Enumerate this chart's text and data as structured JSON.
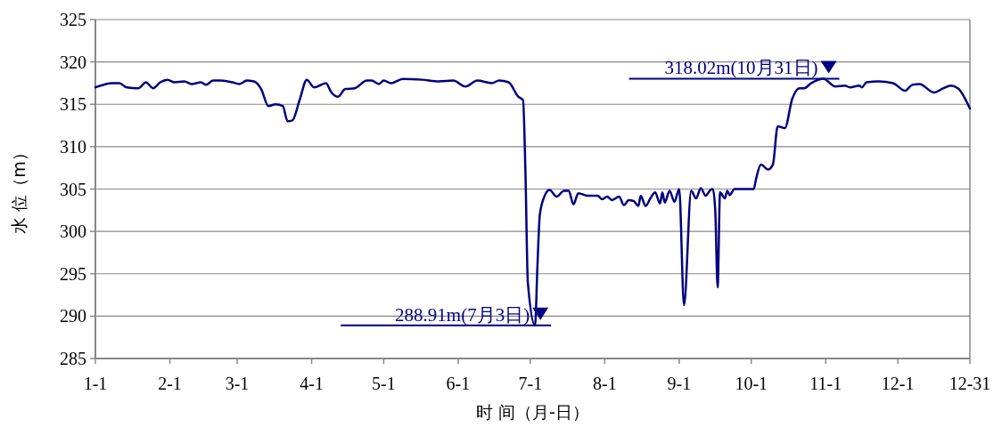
{
  "chart_data": {
    "type": "line",
    "xlabel": "时 间（月-日）",
    "ylabel": "水 位（m）",
    "xlim": [
      "--01-01",
      "--12-31"
    ],
    "ylim": [
      285,
      325
    ],
    "xticks": [
      {
        "value": "--01-01",
        "label": "1-1"
      },
      {
        "value": "--02-01",
        "label": "2-1"
      },
      {
        "value": "--03-01",
        "label": "3-1"
      },
      {
        "value": "--04-01",
        "label": "4-1"
      },
      {
        "value": "--05-01",
        "label": "5-1"
      },
      {
        "value": "--06-01",
        "label": "6-1"
      },
      {
        "value": "--07-01",
        "label": "7-1"
      },
      {
        "value": "--08-01",
        "label": "8-1"
      },
      {
        "value": "--09-01",
        "label": "9-1"
      },
      {
        "value": "--10-01",
        "label": "10-1"
      },
      {
        "value": "--11-01",
        "label": "11-1"
      },
      {
        "value": "--12-01",
        "label": "12-1"
      },
      {
        "value": "--12-31",
        "label": "12-31"
      }
    ],
    "yticks": [
      285,
      290,
      295,
      300,
      305,
      310,
      315,
      320,
      325
    ],
    "grid": "y",
    "marker": "none",
    "line_style": "solid",
    "series": [
      {
        "color": "#000080",
        "x": [
          "--01-01",
          "--01-08",
          "--01-11",
          "--01-14",
          "--01-19",
          "--01-22",
          "--01-25",
          "--01-28",
          "--01-31",
          "--02-03",
          "--02-07",
          "--02-10",
          "--02-14",
          "--02-16",
          "--02-19",
          "--02-22",
          "--02-27",
          "--03-02",
          "--03-05",
          "--03-08",
          "--03-11",
          "--03-14",
          "--03-17",
          "--03-20",
          "--03-22",
          "--03-24",
          "--03-27",
          "--03-30",
          "--04-02",
          "--04-07",
          "--04-09",
          "--04-12",
          "--04-15",
          "--04-19",
          "--04-24",
          "--04-26",
          "--04-29",
          "--05-01",
          "--05-04",
          "--05-09",
          "--05-17",
          "--05-24",
          "--05-30",
          "--06-04",
          "--06-09",
          "--06-15",
          "--06-18",
          "--06-22",
          "--06-26",
          "--06-28",
          "--06-29",
          "--06-30",
          "--07-03",
          "--07-04",
          "--07-05",
          "--07-07",
          "--07-09",
          "--07-12",
          "--07-15",
          "--07-17",
          "--07-19",
          "--07-21",
          "--07-25",
          "--07-29",
          "--07-31",
          "--08-02",
          "--08-04",
          "--08-07",
          "--08-09",
          "--08-11",
          "--08-13",
          "--08-15",
          "--08-16",
          "--08-18",
          "--08-20",
          "--08-22",
          "--08-24",
          "--08-25",
          "--08-26",
          "--08-28",
          "--08-30",
          "--09-01",
          "--09-03",
          "--09-06",
          "--09-08",
          "--09-10",
          "--09-12",
          "--09-14",
          "--09-15",
          "--09-16",
          "--09-17",
          "--09-18",
          "--09-20",
          "--09-21",
          "--09-22",
          "--09-24",
          "--10-02",
          "--10-03",
          "--10-05",
          "--10-08",
          "--10-10",
          "--10-12",
          "--10-15",
          "--10-18",
          "--10-21",
          "--10-23",
          "--10-26",
          "--10-29",
          "--10-31",
          "--11-05",
          "--11-09",
          "--11-11",
          "--11-15",
          "--11-16",
          "--11-18",
          "--11-23",
          "--11-29",
          "--12-04",
          "--12-07",
          "--12-10",
          "--12-16",
          "--12-20",
          "--12-23",
          "--12-26",
          "--12-31"
        ],
        "values": [
          317.0,
          317.5,
          317.5,
          317.0,
          316.9,
          317.6,
          316.9,
          317.6,
          317.9,
          317.6,
          317.7,
          317.4,
          317.6,
          317.3,
          317.8,
          317.8,
          317.6,
          317.4,
          317.8,
          317.7,
          316.8,
          314.8,
          315.0,
          314.8,
          313.0,
          313.1,
          315.5,
          317.9,
          317.0,
          317.5,
          316.5,
          315.9,
          316.8,
          316.9,
          317.8,
          317.8,
          317.4,
          317.8,
          317.5,
          318.0,
          317.9,
          317.7,
          317.8,
          317.1,
          317.8,
          317.5,
          317.8,
          317.6,
          315.9,
          315.5,
          307.0,
          294.0,
          288.91,
          296.0,
          302.0,
          304.2,
          304.9,
          304.1,
          304.8,
          304.8,
          303.2,
          304.5,
          304.2,
          304.2,
          303.8,
          304.1,
          303.7,
          304.1,
          303.1,
          303.7,
          303.6,
          303.0,
          304.2,
          303.0,
          303.9,
          304.6,
          303.3,
          304.6,
          303.4,
          304.8,
          303.5,
          305.0,
          291.3,
          304.8,
          303.9,
          305.1,
          304.2,
          304.9,
          305.0,
          302.5,
          293.4,
          304.6,
          303.9,
          304.8,
          304.3,
          305.0,
          305.0,
          306.2,
          307.9,
          307.3,
          307.9,
          312.4,
          312.2,
          315.6,
          316.9,
          316.9,
          317.5,
          317.9,
          318.02,
          317.1,
          317.2,
          317.0,
          317.2,
          317.0,
          317.6,
          317.7,
          317.5,
          316.6,
          317.3,
          317.4,
          316.4,
          316.9,
          317.2,
          316.9,
          314.5
        ]
      }
    ],
    "annotations": [
      {
        "text": "288.91m(7月3日)",
        "x": "--07-03",
        "y": 288.91
      },
      {
        "text": "318.02m(10月31日)",
        "x": "--10-31",
        "y": 318.02
      }
    ]
  }
}
